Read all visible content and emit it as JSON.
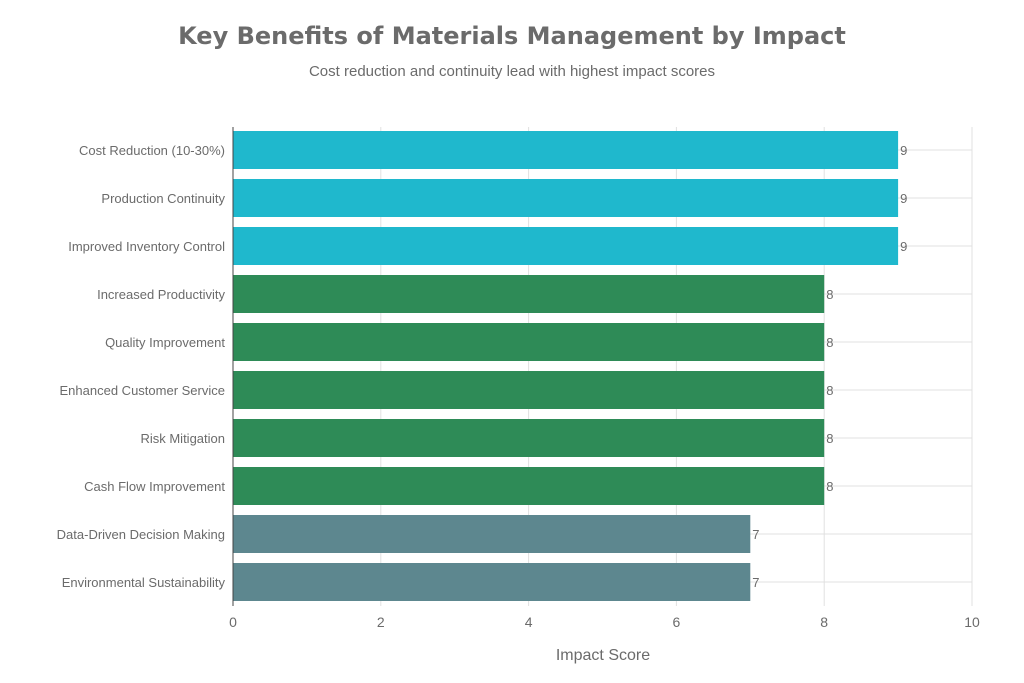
{
  "chart_data": {
    "type": "bar",
    "orientation": "horizontal",
    "title": "Key Benefits of Materials Management by Impact",
    "subtitle": "Cost reduction and continuity lead with highest impact scores",
    "xlabel": "Impact Score",
    "ylabel": "",
    "xlim": [
      0,
      10
    ],
    "xticks": [
      0,
      2,
      4,
      6,
      8,
      10
    ],
    "grid": true,
    "categories": [
      "Cost Reduction (10-30%)",
      "Production Continuity",
      "Improved Inventory Control",
      "Increased Productivity",
      "Quality Improvement",
      "Enhanced Customer Service",
      "Risk Mitigation",
      "Cash Flow Improvement",
      "Data-Driven Decision Making",
      "Environmental Sustainability"
    ],
    "values": [
      9,
      9,
      9,
      8,
      8,
      8,
      8,
      8,
      7,
      7
    ],
    "colors": [
      "#1FB8CD",
      "#1FB8CD",
      "#1FB8CD",
      "#2E8B57",
      "#2E8B57",
      "#2E8B57",
      "#2E8B57",
      "#2E8B57",
      "#5D878F",
      "#5D878F"
    ]
  }
}
